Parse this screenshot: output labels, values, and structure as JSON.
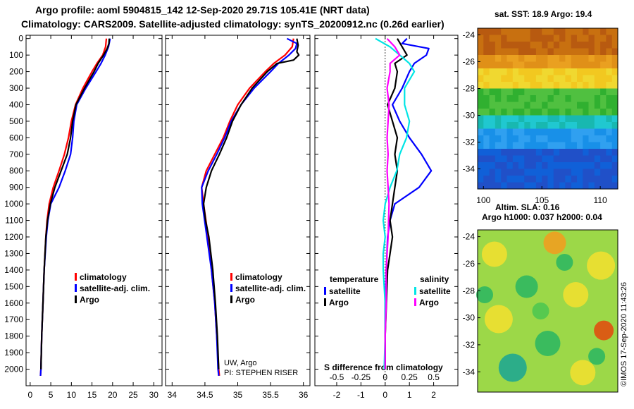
{
  "header": {
    "title_line1": "Argo profile: aoml 5904815_142 12-Sep-2020 29.71S 105.41E (NRT data)",
    "title_line2": "Climatology: CARS2009. Satellite-adjusted climatology: synTS_20200912.nc (0.26d earlier)"
  },
  "colors": {
    "climatology": "#ff0000",
    "satellite": "#0000ff",
    "argo": "#000000",
    "argo_sal": "#ff00ff",
    "sat_sal": "#00e5e5"
  },
  "chart_data": [
    {
      "type": "line",
      "panel": "temperature",
      "xlim": [
        -1,
        32
      ],
      "ylim": [
        2100,
        -20
      ],
      "xticks": [
        0,
        5,
        10,
        15,
        20,
        25,
        30
      ],
      "yticks": [
        0,
        100,
        200,
        300,
        400,
        500,
        600,
        700,
        800,
        900,
        1000,
        1100,
        1200,
        1300,
        1400,
        1500,
        1600,
        1700,
        1800,
        1900,
        2000
      ],
      "legend": [
        "climatology",
        "satellite-adj. clim.",
        "Argo"
      ],
      "series": [
        {
          "name": "climatology",
          "color": "#ff0000",
          "depth": [
            0,
            50,
            100,
            150,
            200,
            300,
            400,
            500,
            600,
            700,
            800,
            900,
            1000,
            1100,
            1200,
            1400,
            1600,
            1800,
            2000,
            2040
          ],
          "values": [
            18.5,
            18.3,
            17.6,
            16.2,
            15.0,
            12.8,
            11.0,
            10.0,
            9.3,
            8.3,
            7.0,
            5.6,
            4.6,
            4.1,
            3.8,
            3.4,
            3.1,
            2.8,
            2.6,
            2.5
          ]
        },
        {
          "name": "satellite-adj. clim.",
          "color": "#0000ff",
          "depth": [
            0,
            50,
            100,
            150,
            200,
            300,
            400,
            500,
            600,
            700,
            800,
            900,
            1000,
            1100,
            1200,
            1400,
            1600,
            1800,
            2000,
            2040
          ],
          "values": [
            19.4,
            19.0,
            18.2,
            17.2,
            16.0,
            13.5,
            11.3,
            10.6,
            10.3,
            9.8,
            8.5,
            7.0,
            5.0,
            4.3,
            3.9,
            3.4,
            3.1,
            2.8,
            2.6,
            2.5
          ]
        },
        {
          "name": "Argo",
          "color": "#000000",
          "depth": [
            0,
            30,
            60,
            100,
            150,
            200,
            300,
            400,
            500,
            600,
            700,
            800,
            900,
            1000,
            1100,
            1200,
            1400,
            1600,
            1800,
            2000
          ],
          "values": [
            19.2,
            19.1,
            18.7,
            17.8,
            16.5,
            15.5,
            13.2,
            11.1,
            10.3,
            9.8,
            9.0,
            7.5,
            6.0,
            4.9,
            4.2,
            3.8,
            3.4,
            3.1,
            2.8,
            2.6
          ]
        }
      ]
    },
    {
      "type": "line",
      "panel": "salinity",
      "xlim": [
        33.9,
        36.1
      ],
      "ylim": [
        2100,
        -20
      ],
      "xticks": [
        34,
        34.5,
        35,
        35.5,
        36
      ],
      "xtick_labels": [
        "34",
        "34.5",
        "35",
        "35.5",
        "36"
      ],
      "legend": [
        "climatology",
        "satellite-adj. clim.",
        "Argo"
      ],
      "annotations": [
        "UW, Argo",
        "PI: STEPHEN RISER"
      ],
      "series": [
        {
          "name": "climatology",
          "color": "#ff0000",
          "depth": [
            0,
            50,
            100,
            150,
            200,
            300,
            400,
            500,
            600,
            700,
            800,
            900,
            1000,
            1200,
            1400,
            1600,
            1800,
            2000,
            2040
          ],
          "values": [
            35.85,
            35.83,
            35.72,
            35.55,
            35.42,
            35.18,
            35.0,
            34.88,
            34.78,
            34.65,
            34.52,
            34.45,
            34.48,
            34.55,
            34.6,
            34.65,
            34.68,
            34.71,
            34.72
          ]
        },
        {
          "name": "satellite-adj. clim.",
          "color": "#0000ff",
          "depth": [
            0,
            30,
            60,
            100,
            150,
            200,
            300,
            400,
            500,
            600,
            700,
            800,
            900,
            1000,
            1200,
            1400,
            1600,
            1800,
            2000,
            2040
          ],
          "values": [
            35.75,
            35.9,
            35.88,
            35.78,
            35.62,
            35.5,
            35.25,
            35.05,
            34.9,
            34.8,
            34.68,
            34.55,
            34.45,
            34.46,
            34.53,
            34.6,
            34.65,
            34.68,
            34.7,
            34.71
          ]
        },
        {
          "name": "Argo",
          "color": "#000000",
          "depth": [
            0,
            40,
            80,
            100,
            130,
            150,
            200,
            300,
            400,
            500,
            600,
            700,
            800,
            900,
            1000,
            1100,
            1200,
            1400,
            1600,
            1800,
            2000
          ],
          "values": [
            35.9,
            35.92,
            35.9,
            35.93,
            35.85,
            35.6,
            35.45,
            35.22,
            35.05,
            34.92,
            34.83,
            34.72,
            34.6,
            34.52,
            34.48,
            34.51,
            34.56,
            34.62,
            34.66,
            34.69,
            34.71
          ]
        }
      ]
    },
    {
      "type": "line",
      "panel": "difference",
      "title": "S difference from climatology",
      "xlim": [
        -2.9,
        3.0
      ],
      "ylim": [
        2100,
        -20
      ],
      "xticks": [
        -2,
        -1,
        0,
        1,
        2
      ],
      "sal_ticks": [
        -0.5,
        -0.25,
        0,
        0.25,
        0.5
      ],
      "sal_tick_labels": [
        "-0.5",
        "-0.25",
        "0",
        "0.25",
        "0.5"
      ],
      "legend_headers": [
        "temperature",
        "salinity"
      ],
      "legend": [
        "satellite",
        "Argo",
        "satellite",
        "Argo"
      ],
      "series": [
        {
          "name": "temperature satellite",
          "color": "#0000ff",
          "depth": [
            0,
            30,
            60,
            100,
            150,
            200,
            300,
            400,
            500,
            600,
            700,
            800,
            900,
            1000,
            1100,
            1200,
            1400,
            1600,
            1800,
            2000
          ],
          "values": [
            0.9,
            0.7,
            1.8,
            1.7,
            1.2,
            1.0,
            0.7,
            0.3,
            0.6,
            1.0,
            1.5,
            1.9,
            1.4,
            0.4,
            0.2,
            0.1,
            0.05,
            0.0,
            0.0,
            0.0
          ]
        },
        {
          "name": "temperature Argo",
          "color": "#000000",
          "depth": [
            0,
            50,
            100,
            150,
            200,
            300,
            400,
            500,
            600,
            700,
            800,
            900,
            1000,
            1100,
            1200,
            1300,
            1400,
            1600,
            1800,
            2000
          ],
          "values": [
            0.5,
            0.7,
            0.9,
            0.4,
            0.5,
            0.4,
            0.1,
            0.3,
            0.5,
            0.4,
            0.5,
            0.4,
            0.3,
            0.2,
            0.3,
            0.2,
            0.1,
            0.05,
            0.0,
            0.0
          ]
        },
        {
          "name": "salinity satellite",
          "color": "#00e5e5",
          "depth": [
            0,
            50,
            100,
            150,
            200,
            300,
            400,
            500,
            600,
            700,
            800,
            900,
            1000,
            1100,
            1200,
            1300,
            1400,
            1500,
            1600,
            1800,
            2000
          ],
          "values": [
            -0.1,
            0.05,
            0.15,
            0.25,
            0.3,
            0.2,
            0.2,
            0.25,
            0.22,
            0.15,
            0.12,
            0.05,
            0.0,
            -0.02,
            0.0,
            -0.02,
            -0.02,
            -0.01,
            0.0,
            0.0,
            -0.01
          ]
        },
        {
          "name": "salinity Argo",
          "color": "#ff00ff",
          "depth": [
            0,
            50,
            100,
            150,
            200,
            300,
            400,
            500,
            600,
            700,
            800,
            900,
            1000,
            1200,
            1400,
            1600,
            1800,
            2000
          ],
          "values": [
            0.02,
            0.1,
            0.15,
            0.05,
            0.05,
            0.02,
            0.04,
            0.03,
            0.02,
            0.03,
            0.02,
            0.03,
            0.04,
            0.03,
            0.01,
            0.01,
            0.0,
            0.0
          ]
        }
      ]
    },
    {
      "type": "heatmap",
      "panel": "sst-map",
      "title": "sat. SST: 18.9 Argo: 19.4",
      "xticks": [
        100,
        105,
        110
      ],
      "yticks": [
        -24,
        -26,
        -28,
        -30,
        -32,
        -34
      ],
      "xlim": [
        99.5,
        111.5
      ],
      "ylim": [
        -35.5,
        -23.5
      ]
    },
    {
      "type": "heatmap",
      "panel": "sla-map",
      "title_line1": "Altim. SLA: 0.16",
      "title_line2": "Argo h1000: 0.037 h2000: 0.04",
      "yticks": [
        -24,
        -26,
        -28,
        -30,
        -32,
        -34
      ],
      "ylim": [
        -35.5,
        -23.5
      ]
    }
  ],
  "footer": {
    "credit": "©IMOS 17-Sep-2020 11:43:26"
  }
}
